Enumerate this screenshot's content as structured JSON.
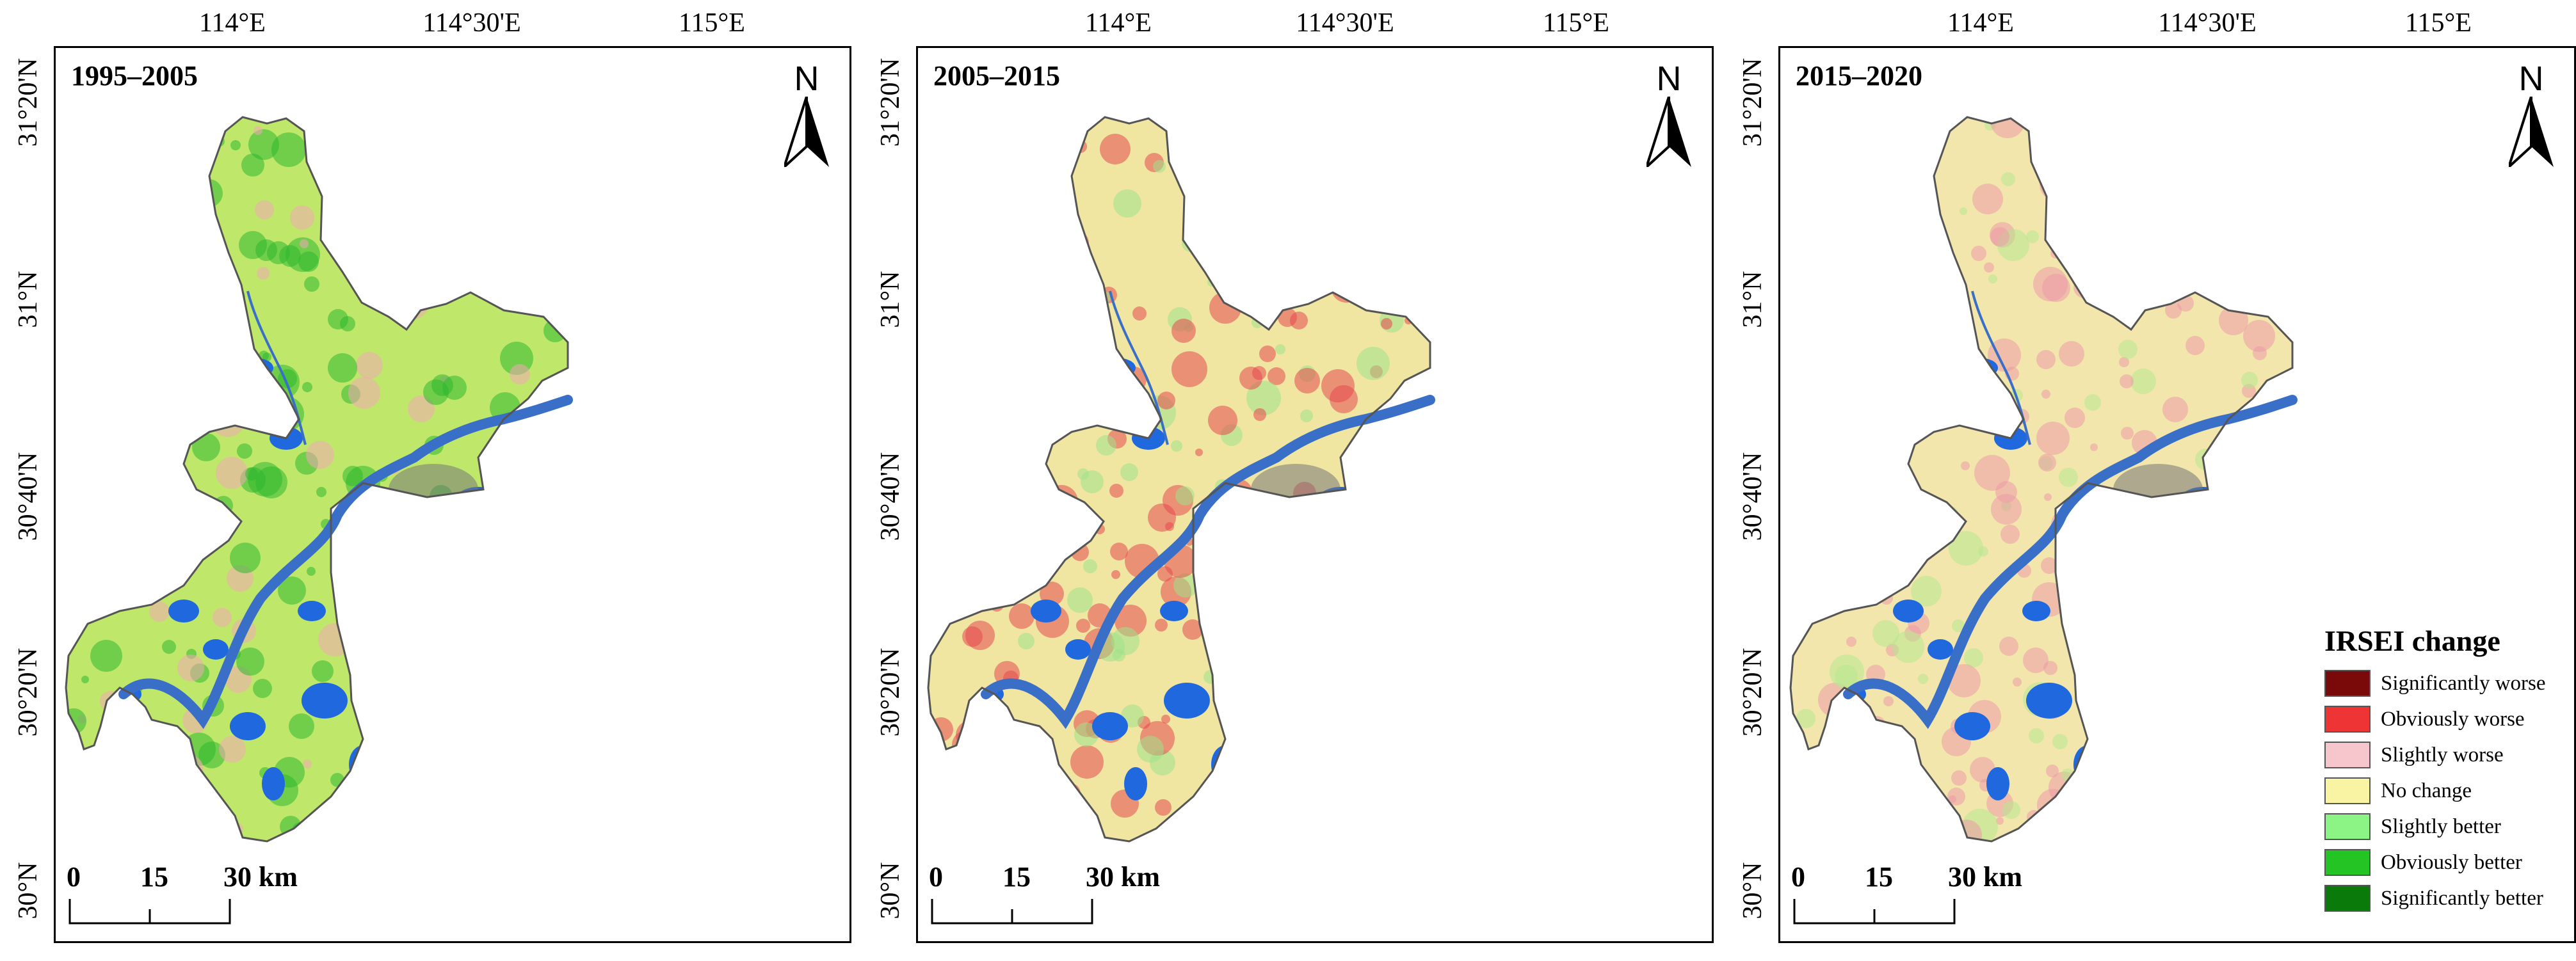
{
  "lon_labels": [
    "114°E",
    "114°30'E",
    "115°E"
  ],
  "lat_labels": [
    "31°20'N",
    "31°N",
    "30°40'N",
    "30°20'N",
    "30°N"
  ],
  "north_label": "N",
  "scale": {
    "labels": [
      "0",
      "15",
      "30 km"
    ]
  },
  "panels": [
    {
      "title": "1995–2005",
      "base": "#bfe86a",
      "patch": "#2fb82f",
      "spot": "#f2a8b4"
    },
    {
      "title": "2005–2015",
      "base": "#f0e6a2",
      "patch": "#e5484f",
      "spot": "#9ee28a"
    },
    {
      "title": "2015–2020",
      "base": "#f2e6ac",
      "patch": "#ec9aa7",
      "spot": "#b6e890"
    }
  ],
  "colors": {
    "water": "#1f68de",
    "river": "#3a6fc8",
    "urban": "#777777"
  },
  "legend": {
    "title": "IRSEI change",
    "items": [
      {
        "label": "Significantly worse",
        "color": "#7a0a0a"
      },
      {
        "label": "Obviously worse",
        "color": "#ee3434"
      },
      {
        "label": "Slightly worse",
        "color": "#f7c6cc"
      },
      {
        "label": "No change",
        "color": "#f9f3a4"
      },
      {
        "label": "Slightly better",
        "color": "#8cf485"
      },
      {
        "label": "Obviously better",
        "color": "#25c425"
      },
      {
        "label": "Significantly better",
        "color": "#0a7a0a"
      }
    ]
  }
}
